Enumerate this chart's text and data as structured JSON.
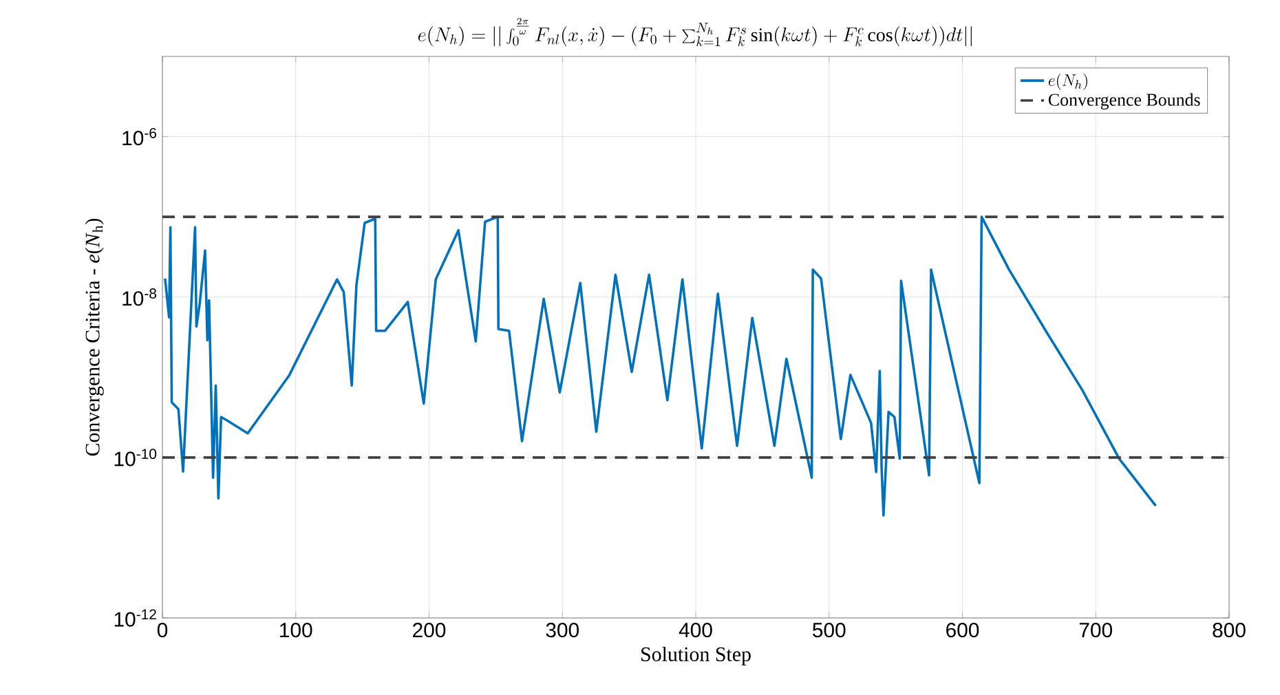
{
  "chart_data": {
    "type": "line",
    "title": "e(N_h) = || \\int_0^{\\frac{2\\pi}{\\omega}} F_{nl}(x,\\dot{x}) - (F_0 + \\sum_{k=1}^{N_h} F_k^s \\sin(k\\omega t) + F_k^c \\cos(k\\omega t)) dt ||",
    "xlabel": "Solution Step",
    "ylabel": "Convergence Criteria - *e*(*N*$_{h}$)",
    "log": "y",
    "grid": true,
    "legend": "top right",
    "line_style": "solid",
    "marker": "none",
    "xlim": [
      0,
      800
    ],
    "xticks": [
      0,
      100,
      200,
      300,
      400,
      500,
      600,
      700,
      800
    ],
    "ylim": [
      1e-12,
      1e-05
    ],
    "yticks": [
      {
        "value": 1e-12,
        "label": "10$^{-12}$"
      },
      {
        "value": 1e-10,
        "label": "10$^{-10}$"
      },
      {
        "value": 1e-08,
        "label": "10$^{-8}$"
      },
      {
        "value": 1e-06,
        "label": "10$^{-6}$"
      }
    ],
    "series": [
      {
        "name": "e(N_h)",
        "color": "#0072bd",
        "x": [
          2,
          5,
          6,
          7,
          12,
          15.5,
          24.5,
          25.5,
          28,
          32,
          33.7,
          35,
          38,
          40,
          42,
          44,
          48.5,
          64,
          95,
          131,
          136,
          142,
          145.5,
          151.7,
          159.6,
          160.3,
          167,
          184,
          196,
          205,
          222,
          235,
          242,
          251.5,
          252,
          260,
          269.7,
          286,
          298,
          313.4,
          325.4,
          339.8,
          352,
          365,
          378.7,
          390,
          404.5,
          416.6,
          431,
          442.4,
          459,
          468,
          487,
          487.8,
          494,
          508.8,
          516,
          531.5,
          535.3,
          538,
          539.4,
          540.8,
          544.6,
          549,
          553,
          554,
          575,
          576.5,
          612.7,
          614.4,
          635,
          662.5,
          690,
          717.5,
          745
        ],
        "values": [
          1.7e-08,
          5.6e-09,
          7.4e-08,
          4.9e-10,
          4e-10,
          6.7e-11,
          7.4e-08,
          4.3e-09,
          8.3e-09,
          3.8e-08,
          2.9e-09,
          9.1e-09,
          5.6e-11,
          7.9e-10,
          3.1e-11,
          3.2e-10,
          2.9e-10,
          2e-10,
          1.05e-09,
          1.66e-08,
          1.15e-08,
          7.9e-10,
          1.4e-08,
          8.4e-08,
          9.5e-08,
          3.8e-09,
          3.8e-09,
          8.7e-09,
          4.7e-10,
          1.66e-08,
          6.8e-08,
          2.8e-09,
          8.7e-08,
          1e-07,
          4e-09,
          3.8e-09,
          1.6e-10,
          9.5e-09,
          6.5e-10,
          1.5e-08,
          2.1e-10,
          1.9e-08,
          1.17e-09,
          1.9e-08,
          5.2e-10,
          1.66e-08,
          1.3e-10,
          1.1e-08,
          1.4e-10,
          5.5e-09,
          1.4e-10,
          1.7e-09,
          5.6e-11,
          2.2e-08,
          1.7e-08,
          1.7e-10,
          1.07e-09,
          2.7e-10,
          6.6e-11,
          1.2e-09,
          7.4e-11,
          1.9e-11,
          3.7e-10,
          3.2e-10,
          9.7e-11,
          1.6e-08,
          6e-11,
          2.2e-08,
          4.8e-11,
          1e-07,
          2.2e-08,
          3.8e-09,
          6.9e-10,
          9.7e-11,
          2.5e-11
        ]
      }
    ],
    "ref_lines": [
      {
        "axis": "y",
        "value": 1e-07,
        "label": "Convergence Bounds",
        "color": "#404040",
        "line_style": "dashed"
      },
      {
        "axis": "y",
        "value": 1e-10,
        "color": "#404040",
        "line_style": "dashed"
      }
    ]
  }
}
